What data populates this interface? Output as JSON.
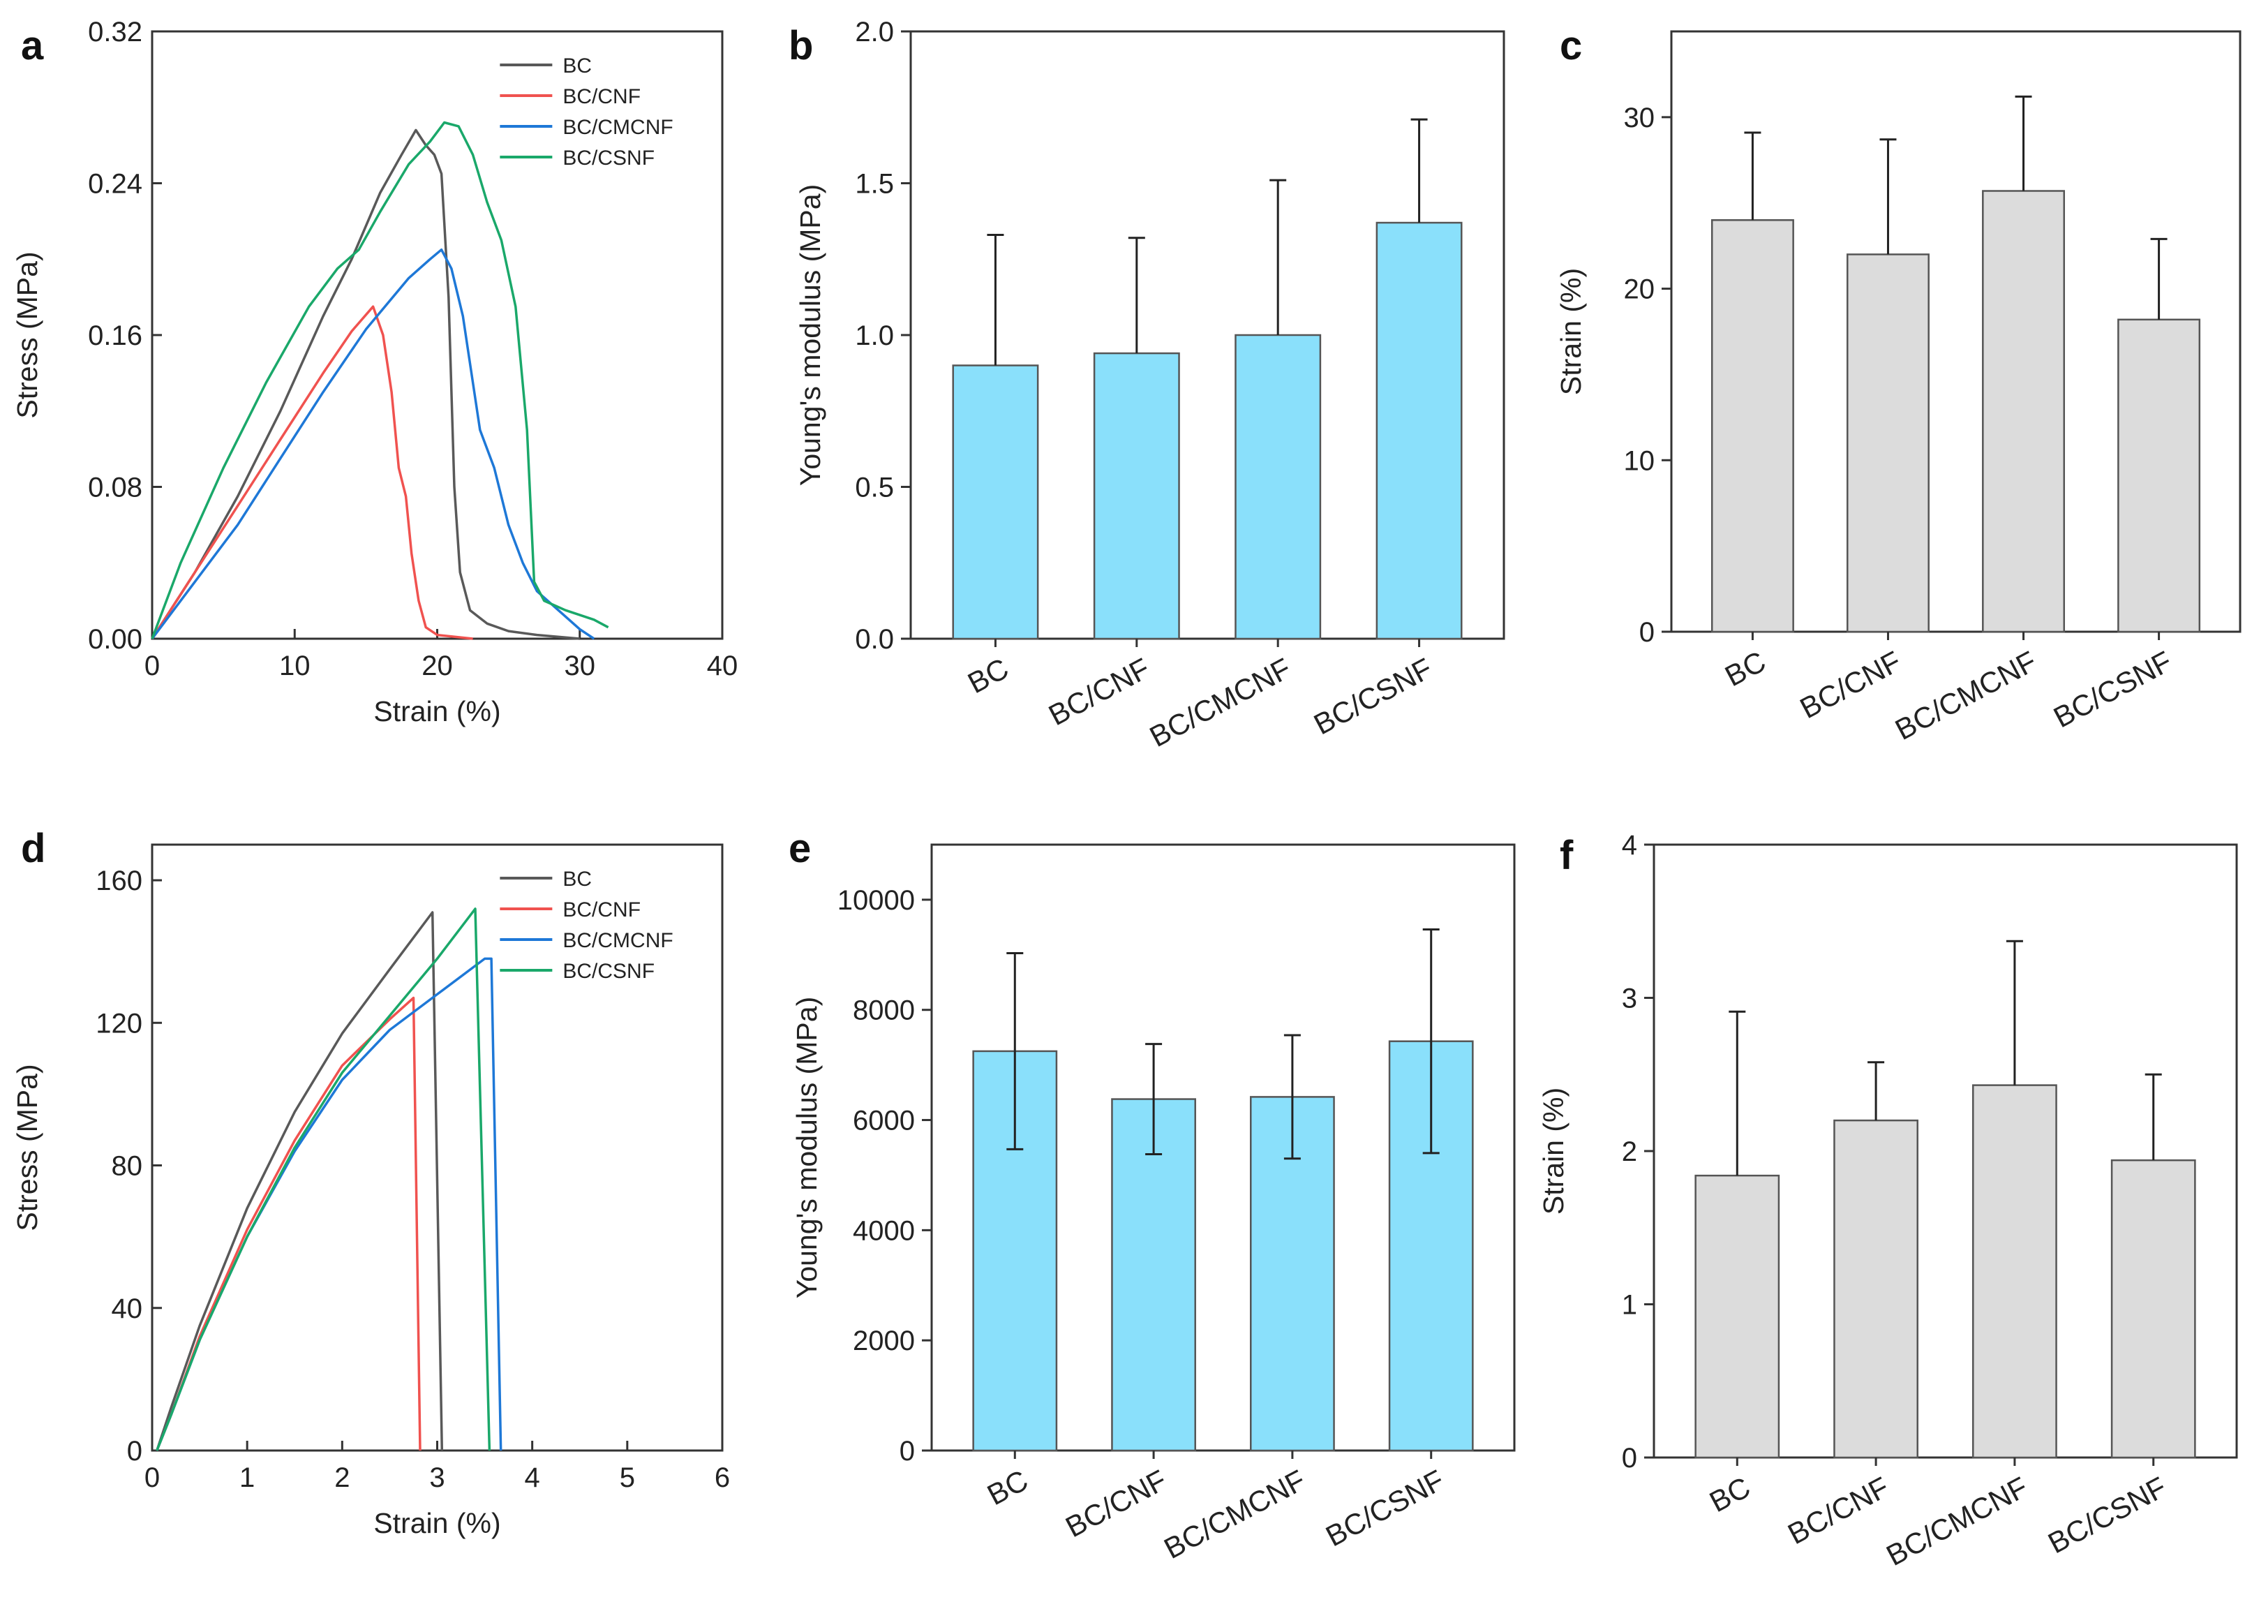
{
  "colors": {
    "BC": "#595959",
    "BC/CNF": "#f0524f",
    "BC/CMCNF": "#1e78d7",
    "BC/CSNF": "#1aa86a",
    "bar_blue": "#8ae0fb",
    "bar_gray": "#dcdcdc"
  },
  "chart_data": [
    {
      "panel": "a",
      "type": "line",
      "xlabel": "Strain (%)",
      "ylabel": "Stress (MPa)",
      "xlim": [
        0,
        40
      ],
      "ylim": [
        0,
        0.32
      ],
      "xticks": [
        "0",
        "10",
        "20",
        "30",
        "40"
      ],
      "yticks": [
        "0.00",
        "0.08",
        "0.16",
        "0.24",
        "0.32"
      ],
      "legend": [
        "BC",
        "BC/CNF",
        "BC/CMCNF",
        "BC/CSNF"
      ],
      "legend_position": "top-right",
      "series": [
        {
          "name": "BC",
          "x": [
            0,
            3,
            6,
            9,
            12,
            14,
            16,
            17.5,
            18.5,
            19.2,
            19.8,
            20.3,
            20.8,
            21.2,
            21.6,
            22.3,
            23.5,
            25,
            27,
            30
          ],
          "y": [
            0,
            0.035,
            0.075,
            0.12,
            0.17,
            0.2,
            0.235,
            0.255,
            0.268,
            0.26,
            0.255,
            0.245,
            0.18,
            0.08,
            0.035,
            0.015,
            0.008,
            0.004,
            0.002,
            0
          ]
        },
        {
          "name": "BC/CNF",
          "x": [
            0,
            3,
            6,
            9,
            12,
            14,
            15.5,
            16.2,
            16.8,
            17.3,
            17.8,
            18.2,
            18.7,
            19.2,
            20,
            22.5
          ],
          "y": [
            0,
            0.035,
            0.07,
            0.105,
            0.14,
            0.162,
            0.175,
            0.16,
            0.13,
            0.09,
            0.075,
            0.045,
            0.02,
            0.006,
            0.002,
            0
          ]
        },
        {
          "name": "BC/CMCNF",
          "x": [
            0,
            3,
            6,
            9,
            12,
            15,
            18,
            19.5,
            20.3,
            21,
            21.8,
            22.5,
            23,
            24,
            25,
            26,
            27,
            28.5,
            30,
            31
          ],
          "y": [
            0,
            0.03,
            0.06,
            0.095,
            0.13,
            0.163,
            0.19,
            0.2,
            0.205,
            0.195,
            0.17,
            0.135,
            0.11,
            0.09,
            0.06,
            0.04,
            0.025,
            0.015,
            0.005,
            0
          ]
        },
        {
          "name": "BC/CSNF",
          "x": [
            0,
            2,
            5,
            8,
            11,
            13,
            14.5,
            16,
            18,
            19.5,
            20.5,
            21.5,
            22.5,
            23.5,
            24.5,
            25.5,
            26.3,
            26.8,
            27.5,
            29,
            31,
            32
          ],
          "y": [
            0,
            0.04,
            0.09,
            0.135,
            0.175,
            0.195,
            0.205,
            0.225,
            0.25,
            0.262,
            0.272,
            0.27,
            0.255,
            0.23,
            0.21,
            0.175,
            0.11,
            0.03,
            0.02,
            0.015,
            0.01,
            0.006
          ]
        }
      ]
    },
    {
      "panel": "b",
      "type": "bar",
      "categories": [
        "BC",
        "BC/CNF",
        "BC/CMCNF",
        "BC/CSNF"
      ],
      "values": [
        0.9,
        0.94,
        1.0,
        1.37
      ],
      "errors": [
        0.43,
        0.38,
        0.51,
        0.34
      ],
      "ylabel": "Young's modulus (MPa)",
      "ylim": [
        0,
        2.0
      ],
      "yticks": [
        "0.0",
        "0.5",
        "1.0",
        "1.5",
        "2.0"
      ]
    },
    {
      "panel": "c",
      "type": "bar",
      "categories": [
        "BC",
        "BC/CNF",
        "BC/CMCNF",
        "BC/CSNF"
      ],
      "values": [
        24,
        22,
        25.7,
        18.2
      ],
      "errors": [
        5.1,
        6.7,
        5.5,
        4.7
      ],
      "ylabel": "Strain (%)",
      "ylim": [
        0,
        35
      ],
      "yticks": [
        "0",
        "10",
        "20",
        "30"
      ]
    },
    {
      "panel": "d",
      "type": "line",
      "xlabel": "Strain (%)",
      "ylabel": "Stress (MPa)",
      "xlim": [
        0,
        6
      ],
      "ylim": [
        0,
        170
      ],
      "xticks": [
        "0",
        "1",
        "2",
        "3",
        "4",
        "5",
        "6"
      ],
      "yticks": [
        "0",
        "40",
        "80",
        "120",
        "160"
      ],
      "legend": [
        "BC",
        "BC/CNF",
        "BC/CMCNF",
        "BC/CSNF"
      ],
      "legend_position": "top-right",
      "series": [
        {
          "name": "BC",
          "x": [
            0.05,
            0.2,
            0.5,
            1.0,
            1.5,
            2.0,
            2.5,
            2.95,
            3.05
          ],
          "y": [
            0,
            12,
            35,
            68,
            95,
            117,
            135,
            151,
            0
          ]
        },
        {
          "name": "BC/CNF",
          "x": [
            0.05,
            0.2,
            0.5,
            1.0,
            1.5,
            2.0,
            2.5,
            2.75,
            2.82
          ],
          "y": [
            0,
            10,
            32,
            62,
            87,
            108,
            121,
            127,
            0
          ]
        },
        {
          "name": "BC/CMCNF",
          "x": [
            0.05,
            0.2,
            0.5,
            1.0,
            1.5,
            2.0,
            2.5,
            3.0,
            3.5,
            3.57,
            3.67
          ],
          "y": [
            0,
            10,
            31,
            60,
            84,
            104,
            118,
            128,
            138,
            138,
            0
          ]
        },
        {
          "name": "BC/CSNF",
          "x": [
            0.05,
            0.2,
            0.5,
            1.0,
            1.5,
            2.0,
            2.5,
            3.0,
            3.4,
            3.55
          ],
          "y": [
            0,
            10,
            31,
            60,
            85,
            106,
            122,
            138,
            152,
            0
          ]
        }
      ]
    },
    {
      "panel": "e",
      "type": "bar",
      "categories": [
        "BC",
        "BC/CNF",
        "BC/CMCNF",
        "BC/CSNF"
      ],
      "values": [
        7250,
        6380,
        6420,
        7430
      ],
      "errors": [
        1780,
        1000,
        1120,
        2030
      ],
      "ylabel": "Young's modulus (MPa)",
      "ylim": [
        0,
        11000
      ],
      "yticks": [
        "0",
        "2000",
        "4000",
        "6000",
        "8000",
        "10000"
      ]
    },
    {
      "panel": "f",
      "type": "bar",
      "categories": [
        "BC",
        "BC/CNF",
        "BC/CMCNF",
        "BC/CSNF"
      ],
      "values": [
        1.84,
        2.2,
        2.43,
        1.94
      ],
      "errors": [
        1.07,
        0.38,
        0.94,
        0.56
      ],
      "ylabel": "Strain (%)",
      "ylim": [
        0,
        4
      ],
      "yticks": [
        "0",
        "1",
        "2",
        "3",
        "4"
      ]
    }
  ]
}
